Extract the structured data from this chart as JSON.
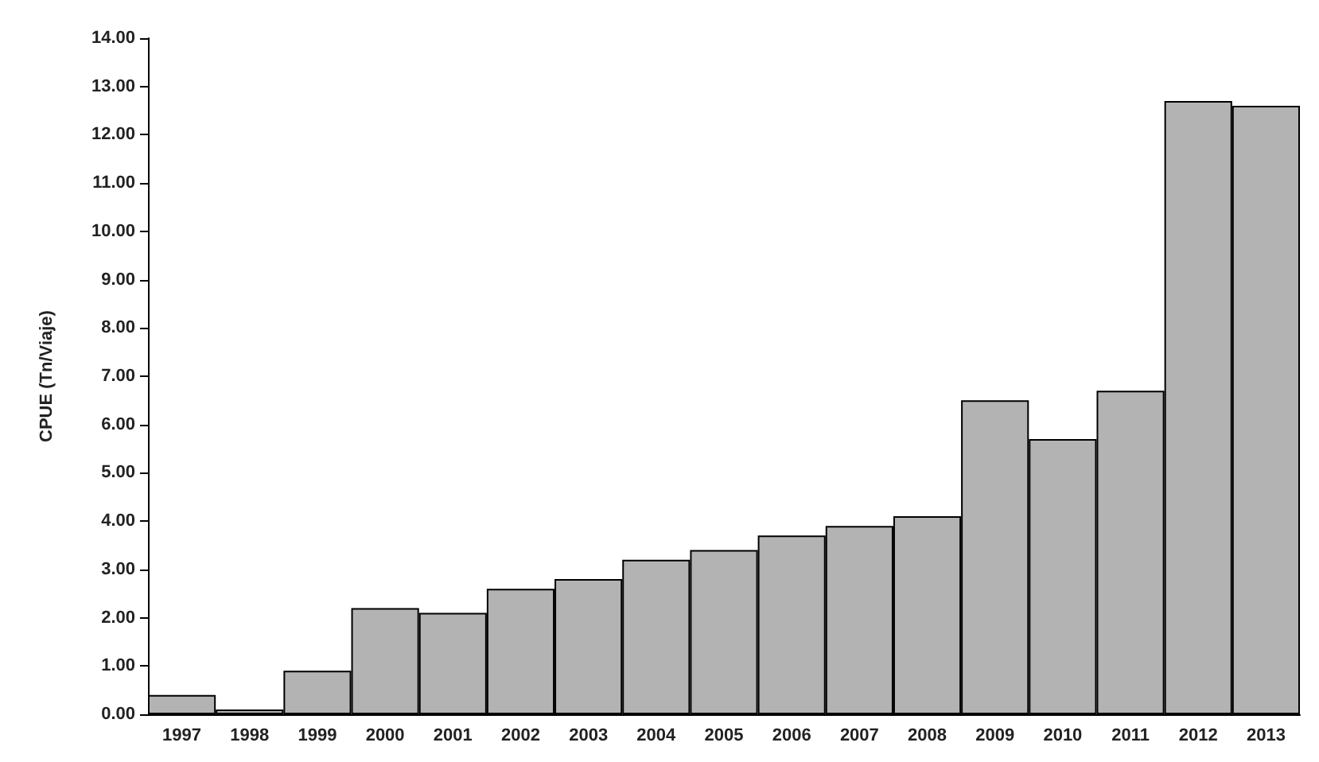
{
  "chart_data": {
    "type": "bar",
    "ylabel": "CPUE (Tn/Viaje)",
    "categories": [
      "1997",
      "1998",
      "1999",
      "2000",
      "2001",
      "2002",
      "2003",
      "2004",
      "2005",
      "2006",
      "2007",
      "2008",
      "2009",
      "2010",
      "2011",
      "2012",
      "2013"
    ],
    "values": [
      0.4,
      0.1,
      0.9,
      2.2,
      2.1,
      2.6,
      2.8,
      3.2,
      3.4,
      3.7,
      3.9,
      4.1,
      6.5,
      5.7,
      6.7,
      12.7,
      12.6
    ],
    "color": "#b3b3b3",
    "ylim": [
      0,
      14
    ],
    "yticks": [
      {
        "value": 0,
        "label": "0.00"
      },
      {
        "value": 1,
        "label": "1.00"
      },
      {
        "value": 2,
        "label": "2.00"
      },
      {
        "value": 3,
        "label": "3.00"
      },
      {
        "value": 4,
        "label": "4.00"
      },
      {
        "value": 5,
        "label": "5.00"
      },
      {
        "value": 6,
        "label": "6.00"
      },
      {
        "value": 7,
        "label": "7.00"
      },
      {
        "value": 8,
        "label": "8.00"
      },
      {
        "value": 9,
        "label": "9.00"
      },
      {
        "value": 10,
        "label": "10.00"
      },
      {
        "value": 11,
        "label": "11.00"
      },
      {
        "value": 12,
        "label": "12.00"
      },
      {
        "value": 13,
        "label": "13.00"
      },
      {
        "value": 14,
        "label": "14.00"
      }
    ],
    "grid": false
  }
}
